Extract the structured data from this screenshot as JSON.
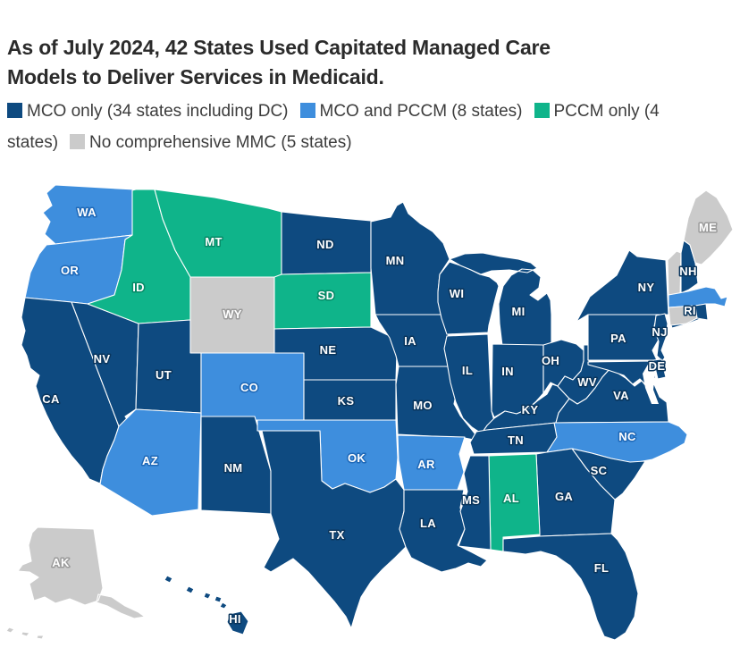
{
  "title": {
    "text": "As of July 2024, 42 States Used Capitated Managed Care Models to Deliver Services in Medicaid."
  },
  "colors": {
    "mco": "#0E4A80",
    "mco_pccm": "#3E8EDD",
    "pccm": "#0FB48A",
    "none": "#CBCBCB"
  },
  "legend": {
    "items": [
      {
        "key": "mco",
        "label": "MCO only (34 states including DC)"
      },
      {
        "key": "mco_pccm",
        "label": "MCO and PCCM (8 states)"
      },
      {
        "key": "pccm",
        "label": "PCCM only (4 states)"
      },
      {
        "key": "none",
        "label": "No comprehensive MMC (5 states)"
      }
    ]
  },
  "states": [
    {
      "id": "WA",
      "label": "WA",
      "category": "mco_pccm"
    },
    {
      "id": "OR",
      "label": "OR",
      "category": "mco_pccm"
    },
    {
      "id": "CA",
      "label": "CA",
      "category": "mco"
    },
    {
      "id": "NV",
      "label": "NV",
      "category": "mco"
    },
    {
      "id": "ID",
      "label": "ID",
      "category": "pccm"
    },
    {
      "id": "MT",
      "label": "MT",
      "category": "pccm"
    },
    {
      "id": "WY",
      "label": "WY",
      "category": "none"
    },
    {
      "id": "UT",
      "label": "UT",
      "category": "mco"
    },
    {
      "id": "CO",
      "label": "CO",
      "category": "mco_pccm"
    },
    {
      "id": "AZ",
      "label": "AZ",
      "category": "mco_pccm"
    },
    {
      "id": "NM",
      "label": "NM",
      "category": "mco"
    },
    {
      "id": "ND",
      "label": "ND",
      "category": "mco"
    },
    {
      "id": "SD",
      "label": "SD",
      "category": "pccm"
    },
    {
      "id": "NE",
      "label": "NE",
      "category": "mco"
    },
    {
      "id": "KS",
      "label": "KS",
      "category": "mco"
    },
    {
      "id": "OK",
      "label": "OK",
      "category": "mco_pccm"
    },
    {
      "id": "TX",
      "label": "TX",
      "category": "mco"
    },
    {
      "id": "MN",
      "label": "MN",
      "category": "mco"
    },
    {
      "id": "IA",
      "label": "IA",
      "category": "mco"
    },
    {
      "id": "MO",
      "label": "MO",
      "category": "mco"
    },
    {
      "id": "AR",
      "label": "AR",
      "category": "mco_pccm"
    },
    {
      "id": "LA",
      "label": "LA",
      "category": "mco"
    },
    {
      "id": "WI",
      "label": "WI",
      "category": "mco"
    },
    {
      "id": "IL",
      "label": "IL",
      "category": "mco"
    },
    {
      "id": "MI",
      "label": "MI",
      "category": "mco"
    },
    {
      "id": "IN",
      "label": "IN",
      "category": "mco"
    },
    {
      "id": "OH",
      "label": "OH",
      "category": "mco"
    },
    {
      "id": "KY",
      "label": "KY",
      "category": "mco"
    },
    {
      "id": "TN",
      "label": "TN",
      "category": "mco"
    },
    {
      "id": "WV",
      "label": "WV",
      "category": "mco"
    },
    {
      "id": "VA",
      "label": "VA",
      "category": "mco"
    },
    {
      "id": "NC",
      "label": "NC",
      "category": "mco_pccm"
    },
    {
      "id": "SC",
      "label": "SC",
      "category": "mco"
    },
    {
      "id": "GA",
      "label": "GA",
      "category": "mco"
    },
    {
      "id": "AL",
      "label": "AL",
      "category": "pccm"
    },
    {
      "id": "MS",
      "label": "MS",
      "category": "mco"
    },
    {
      "id": "FL",
      "label": "FL",
      "category": "mco"
    },
    {
      "id": "PA",
      "label": "PA",
      "category": "mco"
    },
    {
      "id": "NY",
      "label": "NY",
      "category": "mco"
    },
    {
      "id": "NJ",
      "label": "NJ",
      "category": "mco"
    },
    {
      "id": "VT",
      "label": "",
      "category": "none"
    },
    {
      "id": "NH",
      "label": "NH",
      "category": "mco"
    },
    {
      "id": "ME",
      "label": "ME",
      "category": "none"
    },
    {
      "id": "MA",
      "label": "",
      "category": "mco_pccm"
    },
    {
      "id": "CT",
      "label": "",
      "category": "none"
    },
    {
      "id": "RI",
      "label": "RI",
      "category": "mco"
    },
    {
      "id": "DE",
      "label": "DE",
      "category": "mco"
    },
    {
      "id": "MD",
      "label": "",
      "category": "mco"
    },
    {
      "id": "AK",
      "label": "AK",
      "category": "none"
    },
    {
      "id": "HI",
      "label": "HI",
      "category": "mco"
    }
  ],
  "chart_data": {
    "type": "choropleth",
    "title": "As of July 2024, 42 States Used Capitated Managed Care Models to Deliver Services in Medicaid.",
    "legend_position": "top",
    "categories": {
      "mco_only": {
        "label": "MCO only (34 states including DC)",
        "color": "#0E4A80",
        "count": 34,
        "states": [
          "CA",
          "NV",
          "UT",
          "NM",
          "TX",
          "ND",
          "NE",
          "KS",
          "MN",
          "IA",
          "MO",
          "LA",
          "MS",
          "WI",
          "IL",
          "MI",
          "IN",
          "OH",
          "KY",
          "TN",
          "WV",
          "VA",
          "SC",
          "GA",
          "FL",
          "PA",
          "NY",
          "NJ",
          "NH",
          "RI",
          "DE",
          "MD",
          "HI",
          "DC"
        ]
      },
      "mco_and_pccm": {
        "label": "MCO and PCCM (8 states)",
        "color": "#3E8EDD",
        "count": 8,
        "states": [
          "WA",
          "OR",
          "CO",
          "AZ",
          "OK",
          "AR",
          "NC",
          "MA"
        ]
      },
      "pccm_only": {
        "label": "PCCM only (4 states)",
        "color": "#0FB48A",
        "count": 4,
        "states": [
          "ID",
          "MT",
          "SD",
          "AL"
        ]
      },
      "no_comprehensive_mmc": {
        "label": "No comprehensive MMC (5 states)",
        "color": "#CBCBCB",
        "count": 5,
        "states": [
          "WY",
          "VT",
          "CT",
          "ME",
          "AK"
        ]
      }
    }
  }
}
